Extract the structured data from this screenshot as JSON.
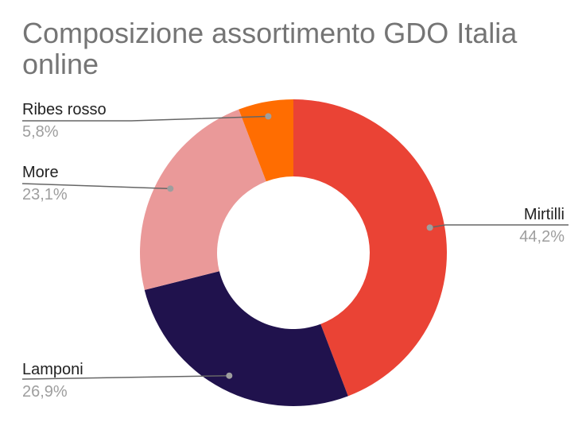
{
  "chart_data": {
    "type": "pie",
    "title": "Composizione assortimento GDO Italia online",
    "donut": true,
    "slices": [
      {
        "label": "Mirtilli",
        "value": 44.2,
        "value_label": "44,2%",
        "color": "#ea4335"
      },
      {
        "label": "Lamponi",
        "value": 26.9,
        "value_label": "26,9%",
        "color": "#20124d"
      },
      {
        "label": "More",
        "value": 23.1,
        "value_label": "23,1%",
        "color": "#ea9999"
      },
      {
        "label": "Ribes rosso",
        "value": 5.8,
        "value_label": "5,8%",
        "color": "#ff6d01"
      }
    ],
    "legend": "none",
    "label_position": "outside-with-leader-lines"
  }
}
